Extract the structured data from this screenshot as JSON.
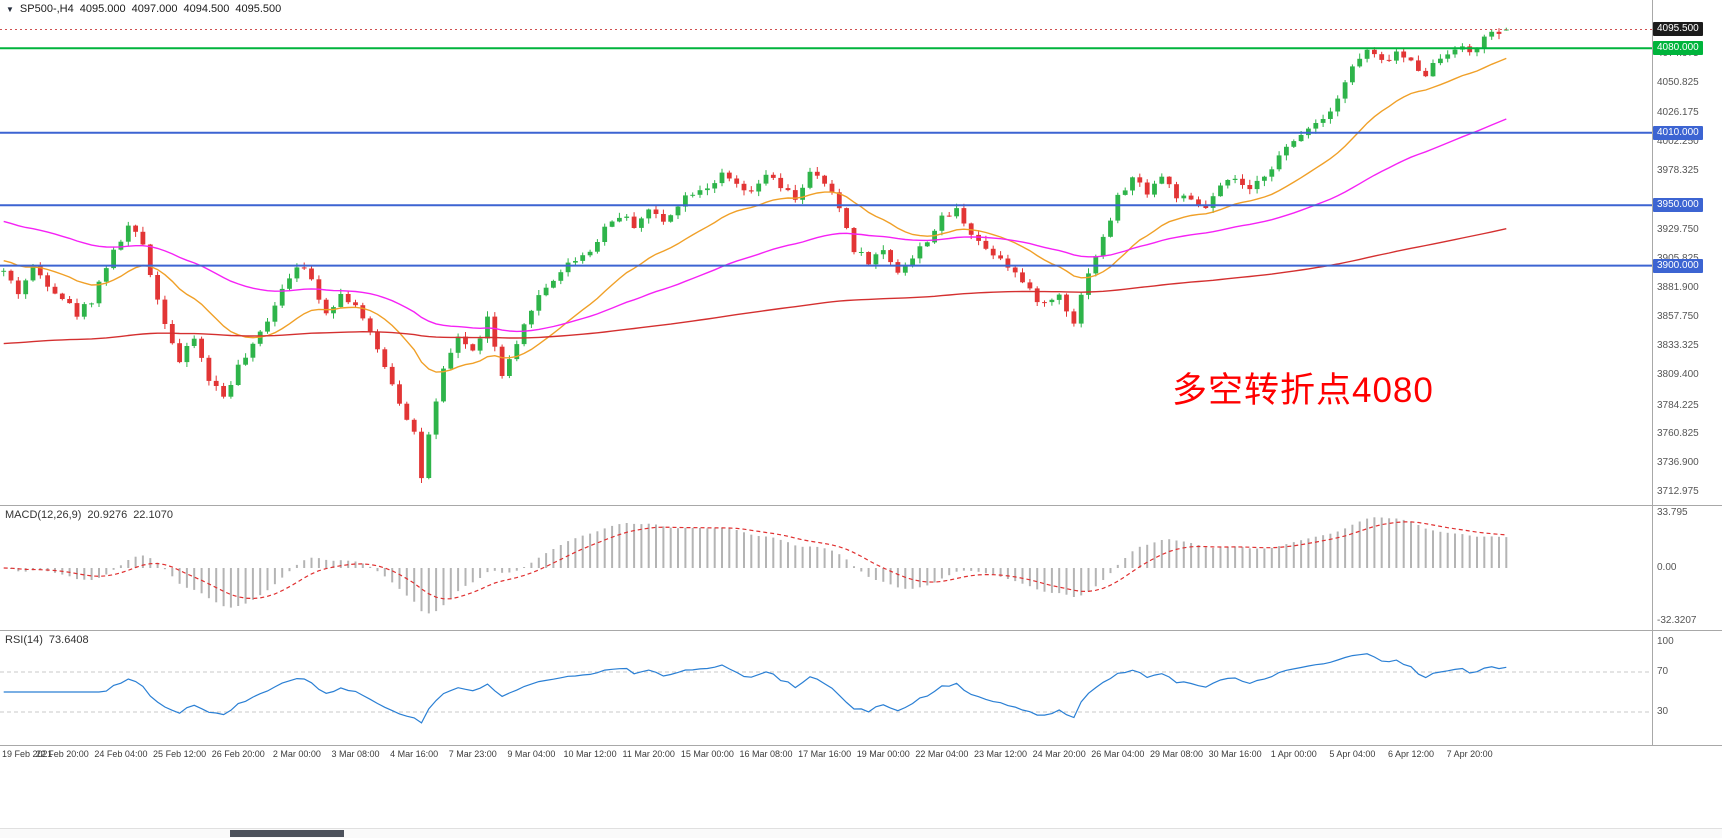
{
  "header": {
    "symbol_timeframe": "SP500-,H4",
    "open": "4095.000",
    "high": "4097.000",
    "low": "4094.500",
    "close": "4095.500"
  },
  "icons": {
    "symbol_dropdown": "▼"
  },
  "annotation": {
    "text": "多空转折点4080",
    "color": "#ff0000"
  },
  "chart_data": {
    "type": "candlestick",
    "symbol": "SP500-",
    "timeframe": "H4",
    "current_ohlc": {
      "open": 4095.0,
      "high": 4097.0,
      "low": 4094.5,
      "close": 4095.5
    },
    "candle_count": 206,
    "candles_per_label": 8,
    "y_range": [
      3706,
      4105
    ],
    "y_ticks": [
      4074.975,
      4050.825,
      4026.175,
      4002.25,
      3978.325,
      3929.75,
      3905.825,
      3881.9,
      3857.75,
      3833.325,
      3809.4,
      3784.225,
      3760.825,
      3736.9,
      3712.975
    ],
    "x_labels": [
      "19 Feb 2021",
      "22 Feb 20:00",
      "24 Feb 04:00",
      "25 Feb 12:00",
      "26 Feb 20:00",
      "2 Mar 00:00",
      "3 Mar 08:00",
      "4 Mar 16:00",
      "7 Mar 23:00",
      "9 Mar 04:00",
      "10 Mar 12:00",
      "11 Mar 20:00",
      "15 Mar 00:00",
      "16 Mar 08:00",
      "17 Mar 16:00",
      "19 Mar 00:00",
      "22 Mar 04:00",
      "23 Mar 12:00",
      "24 Mar 20:00",
      "26 Mar 04:00",
      "29 Mar 08:00",
      "30 Mar 16:00",
      "1 Apr 00:00",
      "5 Apr 04:00",
      "6 Apr 12:00",
      "7 Apr 20:00"
    ],
    "levels": [
      {
        "price": 4095.5,
        "label": "4095.500",
        "type": "last-price",
        "color": "#1c1c1c"
      },
      {
        "price": 4080.0,
        "label": "4080.000",
        "type": "hline",
        "color": "#00b43c"
      },
      {
        "price": 4010.0,
        "label": "4010.000",
        "type": "hline",
        "color": "#3c64d2"
      },
      {
        "price": 3950.0,
        "label": "3950.000",
        "type": "hline",
        "color": "#3c64d2"
      },
      {
        "price": 3900.0,
        "label": "3900.000",
        "type": "hline",
        "color": "#3c64d2"
      }
    ],
    "up_color": "#2eb44a",
    "down_color": "#e23535",
    "price_path_anchors": [
      [
        0,
        3895
      ],
      [
        2,
        3878
      ],
      [
        4,
        3898
      ],
      [
        6,
        3886
      ],
      [
        8,
        3874
      ],
      [
        10,
        3860
      ],
      [
        12,
        3872
      ],
      [
        14,
        3900
      ],
      [
        17,
        3932
      ],
      [
        19,
        3918
      ],
      [
        21,
        3872
      ],
      [
        24,
        3820
      ],
      [
        26,
        3840
      ],
      [
        28,
        3806
      ],
      [
        30,
        3792
      ],
      [
        32,
        3816
      ],
      [
        34,
        3832
      ],
      [
        36,
        3856
      ],
      [
        38,
        3882
      ],
      [
        40,
        3902
      ],
      [
        42,
        3888
      ],
      [
        44,
        3862
      ],
      [
        46,
        3876
      ],
      [
        48,
        3868
      ],
      [
        50,
        3842
      ],
      [
        52,
        3818
      ],
      [
        54,
        3788
      ],
      [
        56,
        3762
      ],
      [
        57,
        3725
      ],
      [
        58,
        3758
      ],
      [
        60,
        3812
      ],
      [
        62,
        3842
      ],
      [
        64,
        3828
      ],
      [
        66,
        3856
      ],
      [
        68,
        3808
      ],
      [
        70,
        3832
      ],
      [
        72,
        3866
      ],
      [
        74,
        3882
      ],
      [
        76,
        3896
      ],
      [
        78,
        3906
      ],
      [
        80,
        3912
      ],
      [
        82,
        3932
      ],
      [
        84,
        3942
      ],
      [
        86,
        3934
      ],
      [
        88,
        3946
      ],
      [
        90,
        3936
      ],
      [
        92,
        3952
      ],
      [
        94,
        3962
      ],
      [
        96,
        3966
      ],
      [
        98,
        3974
      ],
      [
        100,
        3966
      ],
      [
        102,
        3958
      ],
      [
        104,
        3976
      ],
      [
        106,
        3964
      ],
      [
        108,
        3956
      ],
      [
        110,
        3976
      ],
      [
        112,
        3968
      ],
      [
        114,
        3948
      ],
      [
        116,
        3914
      ],
      [
        118,
        3904
      ],
      [
        120,
        3912
      ],
      [
        122,
        3896
      ],
      [
        124,
        3906
      ],
      [
        126,
        3922
      ],
      [
        128,
        3938
      ],
      [
        130,
        3946
      ],
      [
        132,
        3928
      ],
      [
        134,
        3914
      ],
      [
        136,
        3908
      ],
      [
        138,
        3894
      ],
      [
        140,
        3878
      ],
      [
        142,
        3868
      ],
      [
        144,
        3876
      ],
      [
        146,
        3854
      ],
      [
        148,
        3896
      ],
      [
        150,
        3922
      ],
      [
        152,
        3956
      ],
      [
        154,
        3972
      ],
      [
        156,
        3962
      ],
      [
        158,
        3974
      ],
      [
        160,
        3958
      ],
      [
        162,
        3952
      ],
      [
        164,
        3948
      ],
      [
        166,
        3964
      ],
      [
        168,
        3972
      ],
      [
        170,
        3960
      ],
      [
        172,
        3976
      ],
      [
        174,
        3990
      ],
      [
        176,
        4002
      ],
      [
        178,
        4016
      ],
      [
        180,
        4022
      ],
      [
        182,
        4040
      ],
      [
        184,
        4064
      ],
      [
        186,
        4078
      ],
      [
        188,
        4068
      ],
      [
        190,
        4076
      ],
      [
        192,
        4068
      ],
      [
        194,
        4060
      ],
      [
        196,
        4072
      ],
      [
        198,
        4082
      ],
      [
        200,
        4076
      ],
      [
        202,
        4088
      ],
      [
        204,
        4093
      ],
      [
        206,
        4095.5
      ]
    ],
    "moving_averages": [
      {
        "period": 20,
        "color": "#f0a028",
        "init": 3905
      },
      {
        "period": 60,
        "color": "#f522f5",
        "init": 3938
      },
      {
        "period": 250,
        "color": "#d43030",
        "init": 3835
      }
    ],
    "indicators": {
      "macd": {
        "label": "MACD(12,26,9)",
        "main_value": "20.9276",
        "signal_value": "22.1070",
        "fast": 12,
        "slow": 26,
        "signal_period": 9,
        "hist_color": "#b4b4b4",
        "signal_color": "#e03030",
        "y_ticks": [
          {
            "v": 33.795,
            "t": "33.795"
          },
          {
            "v": 0,
            "t": "0.00"
          },
          {
            "v": -32.3207,
            "t": "-32.3207"
          }
        ]
      },
      "rsi": {
        "label": "RSI(14)",
        "value": "73.6408",
        "period": 14,
        "color": "#2a7fd4",
        "levels": [
          70,
          30
        ],
        "y_ticks": [
          {
            "v": 100,
            "t": "100"
          },
          {
            "v": 70,
            "t": "70"
          },
          {
            "v": 30,
            "t": "30"
          }
        ]
      }
    }
  }
}
